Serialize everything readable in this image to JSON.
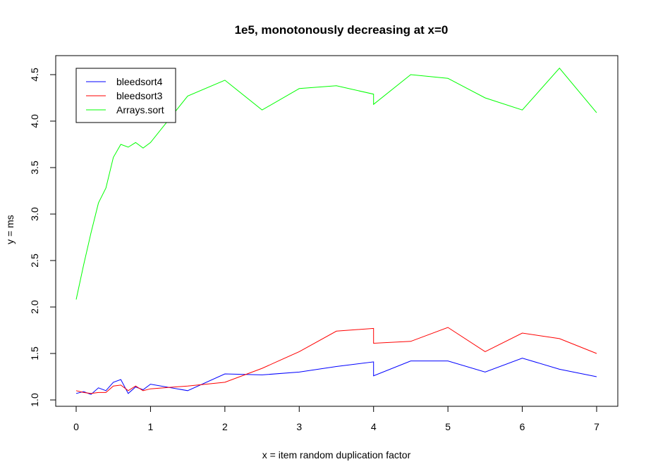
{
  "chart_data": {
    "type": "line",
    "title": "1e5, monotonously decreasing at x=0",
    "xlabel": "x = item random duplication factor",
    "ylabel": "y = ms",
    "xlim": [
      0,
      7
    ],
    "ylim": [
      1.0,
      4.5
    ],
    "x_ticks": [
      "0",
      "1",
      "2",
      "3",
      "4",
      "5",
      "6",
      "7"
    ],
    "y_ticks": [
      "1.0",
      "1.5",
      "2.0",
      "2.5",
      "3.0",
      "3.5",
      "4.0",
      "4.5"
    ],
    "grid": false,
    "legend_position": "top-left",
    "series": [
      {
        "name": "bleedsort4",
        "color": "#0000ff",
        "x": [
          0,
          0.1,
          0.2,
          0.3,
          0.4,
          0.5,
          0.6,
          0.7,
          0.8,
          0.9,
          1.0,
          1.5,
          2.0,
          2.5,
          3.0,
          3.5,
          4.0,
          4.0,
          4.5,
          5.0,
          5.5,
          6.0,
          6.5,
          7.0
        ],
        "y": [
          1.07,
          1.09,
          1.06,
          1.13,
          1.1,
          1.19,
          1.22,
          1.07,
          1.14,
          1.11,
          1.17,
          1.1,
          1.28,
          1.27,
          1.3,
          1.36,
          1.41,
          1.26,
          1.42,
          1.42,
          1.3,
          1.45,
          1.33,
          1.25
        ]
      },
      {
        "name": "bleedsort3",
        "color": "#ff0000",
        "x": [
          0,
          0.1,
          0.2,
          0.3,
          0.4,
          0.5,
          0.6,
          0.7,
          0.8,
          0.9,
          1.0,
          1.5,
          2.0,
          2.5,
          3.0,
          3.5,
          4.0,
          4.0,
          4.5,
          5.0,
          5.5,
          6.0,
          6.5,
          7.0
        ],
        "y": [
          1.1,
          1.08,
          1.07,
          1.08,
          1.08,
          1.15,
          1.16,
          1.1,
          1.15,
          1.1,
          1.12,
          1.15,
          1.19,
          1.34,
          1.52,
          1.74,
          1.77,
          1.61,
          1.63,
          1.78,
          1.52,
          1.72,
          1.66,
          1.5
        ]
      },
      {
        "name": "Arrays.sort",
        "color": "#00ff00",
        "x": [
          0,
          0.1,
          0.2,
          0.3,
          0.4,
          0.5,
          0.6,
          0.7,
          0.8,
          0.9,
          1.0,
          1.5,
          2.0,
          2.5,
          3.0,
          3.5,
          4.0,
          4.0,
          4.5,
          5.0,
          5.5,
          6.0,
          6.5,
          7.0
        ],
        "y": [
          2.08,
          2.45,
          2.8,
          3.12,
          3.28,
          3.61,
          3.75,
          3.72,
          3.77,
          3.71,
          3.77,
          4.27,
          4.44,
          4.12,
          4.35,
          4.38,
          4.29,
          4.18,
          4.5,
          4.46,
          4.25,
          4.12,
          4.57,
          4.09
        ]
      }
    ]
  }
}
